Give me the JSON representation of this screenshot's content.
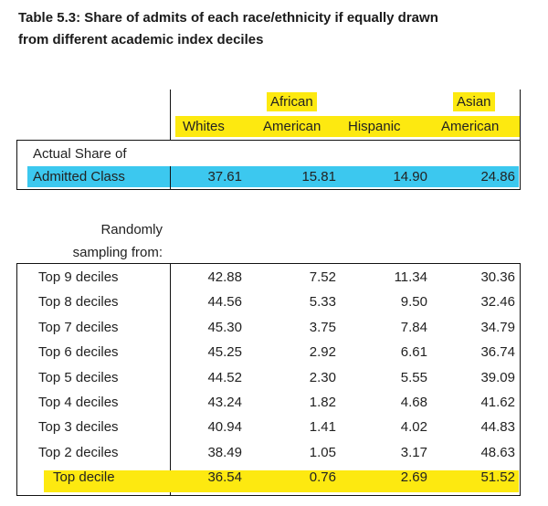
{
  "table": {
    "title_line1": "Table 5.3: Share of admits of each race/ethnicity if equally drawn",
    "title_line2": "from different academic index deciles",
    "headers": {
      "whites": "Whites",
      "african_1": "African",
      "african_2": "American",
      "hispanic": "Hispanic",
      "asian_1": "Asian",
      "asian_2": "American"
    },
    "actual": {
      "label_1": "Actual Share of",
      "label_2": "Admitted Class",
      "values": [
        "37.61",
        "15.81",
        "14.90",
        "24.86"
      ]
    },
    "random_label_1": "Randomly",
    "random_label_2": "sampling from:",
    "rows": [
      {
        "label": "Top 9 deciles",
        "values": [
          "42.88",
          "7.52",
          "11.34",
          "30.36"
        ]
      },
      {
        "label": "Top 8 deciles",
        "values": [
          "44.56",
          "5.33",
          "9.50",
          "32.46"
        ]
      },
      {
        "label": "Top 7 deciles",
        "values": [
          "45.30",
          "3.75",
          "7.84",
          "34.79"
        ]
      },
      {
        "label": "Top 6 deciles",
        "values": [
          "45.25",
          "2.92",
          "6.61",
          "36.74"
        ]
      },
      {
        "label": "Top 5 deciles",
        "values": [
          "44.52",
          "2.30",
          "5.55",
          "39.09"
        ]
      },
      {
        "label": "Top 4 deciles",
        "values": [
          "43.24",
          "1.82",
          "4.68",
          "41.62"
        ]
      },
      {
        "label": "Top 3 deciles",
        "values": [
          "40.94",
          "1.41",
          "4.02",
          "44.83"
        ]
      },
      {
        "label": "Top 2 deciles",
        "values": [
          "38.49",
          "1.05",
          "3.17",
          "48.63"
        ]
      },
      {
        "label": "Top decile",
        "values": [
          "36.54",
          "0.76",
          "2.69",
          "51.52"
        ]
      }
    ],
    "colors": {
      "highlight_yellow": "#fde910",
      "highlight_cyan": "#3cc8ef"
    }
  }
}
